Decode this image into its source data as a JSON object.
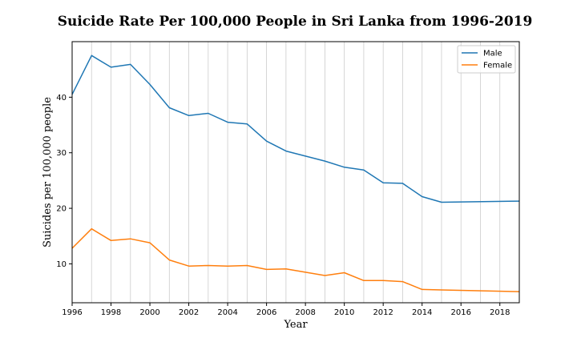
{
  "chart_data": {
    "type": "line",
    "title": "Suicide Rate Per 100,000 People in Sri Lanka from 1996-2019",
    "xlabel": "Year",
    "ylabel": "Suicides per 100,000 people",
    "xlim": [
      1996,
      2019
    ],
    "ylim": [
      3,
      50
    ],
    "xticks": [
      1996,
      1998,
      2000,
      2002,
      2004,
      2006,
      2008,
      2010,
      2012,
      2014,
      2016,
      2018
    ],
    "yticks": [
      10,
      20,
      30,
      40
    ],
    "grid": "vertical gridlines at every year",
    "legend_position": "top-right",
    "x": [
      1996,
      1997,
      1998,
      1999,
      2000,
      2001,
      2002,
      2003,
      2004,
      2005,
      2006,
      2007,
      2008,
      2009,
      2010,
      2011,
      2012,
      2013,
      2014,
      2015,
      2019
    ],
    "series": [
      {
        "name": "Male",
        "color": "#1f77b4",
        "values": [
          40.5,
          47.5,
          45.4,
          45.9,
          42.3,
          38.1,
          36.7,
          37.1,
          35.5,
          35.2,
          32.1,
          30.3,
          29.4,
          28.5,
          27.4,
          26.9,
          24.6,
          24.5,
          22.1,
          21.1,
          21.3
        ]
      },
      {
        "name": "Female",
        "color": "#ff7f0e",
        "values": [
          12.8,
          16.3,
          14.2,
          14.5,
          13.8,
          10.7,
          9.6,
          9.7,
          9.6,
          9.7,
          9.0,
          9.1,
          8.5,
          7.9,
          8.4,
          7.0,
          7.0,
          6.8,
          5.4,
          5.3,
          5.0
        ]
      }
    ]
  }
}
